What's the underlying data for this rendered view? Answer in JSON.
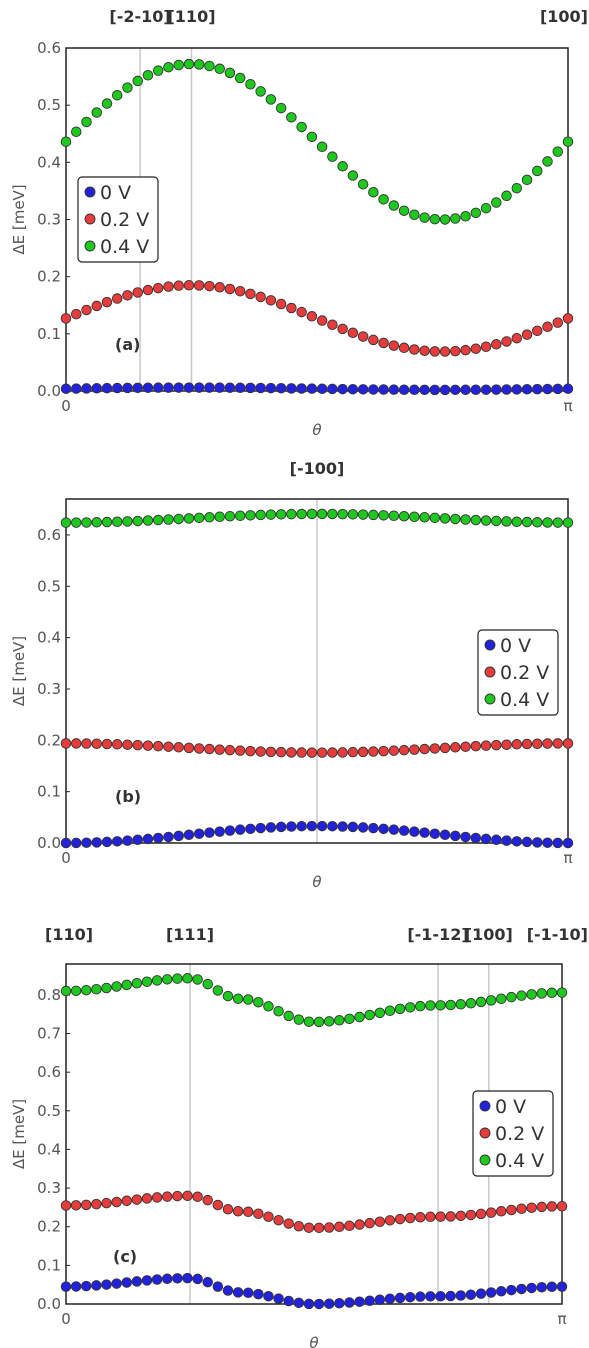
{
  "chart_data": [
    {
      "type": "scatter",
      "panel_label": "(a)",
      "xlabel": "θ",
      "ylabel": "ΔE [meV]",
      "xlim": [
        0,
        3.1416
      ],
      "ylim": [
        0,
        0.6
      ],
      "yticks": [
        "0.0",
        "0.1",
        "0.2",
        "0.3",
        "0.4",
        "0.5",
        "0.6"
      ],
      "xticks": [
        "0",
        "π"
      ],
      "yticks_values": [
        0,
        0.1,
        0.2,
        0.3,
        0.4,
        0.5,
        0.6
      ],
      "xticks_values": [
        0,
        3.1416
      ],
      "legend_position": "center-left",
      "direction_lines": [
        {
          "label": "[-2-10]",
          "x": 0.4636
        },
        {
          "label": "[110]",
          "x": 0.7854
        },
        {
          "label": "[100]",
          "x": 3.1416
        }
      ],
      "series": [
        {
          "name": "0 V",
          "color": "#2222dd",
          "amplitude": 0.002,
          "offset": 0.004,
          "phase": 0.785
        },
        {
          "name": "0.2 V",
          "color": "#e63c3c",
          "amplitude": 0.058,
          "offset": 0.127,
          "phase": 0.785
        },
        {
          "name": "0.4 V",
          "color": "#1ec81e",
          "amplitude": 0.136,
          "offset": 0.436,
          "phase": 0.785
        }
      ]
    },
    {
      "type": "scatter",
      "panel_label": "(b)",
      "xlabel": "θ",
      "ylabel": "ΔE [meV]",
      "xlim": [
        0,
        3.1416
      ],
      "ylim": [
        0,
        0.67
      ],
      "yticks": [
        "0.0",
        "0.1",
        "0.2",
        "0.3",
        "0.4",
        "0.5",
        "0.6"
      ],
      "xticks": [
        "0",
        "π"
      ],
      "yticks_values": [
        0,
        0.1,
        0.2,
        0.3,
        0.4,
        0.5,
        0.6
      ],
      "xticks_values": [
        0,
        3.1416
      ],
      "legend_position": "center-right",
      "direction_lines": [
        {
          "label": "[-100]",
          "x": 1.5708
        }
      ],
      "series": [
        {
          "name": "0 V",
          "color": "#2222dd",
          "amplitude": -0.0165,
          "offset": 0.0165,
          "phase": 0
        },
        {
          "name": "0.2 V",
          "color": "#e63c3c",
          "amplitude": 0.009,
          "offset": 0.185,
          "phase": 0
        },
        {
          "name": "0.4 V",
          "color": "#1ec81e",
          "amplitude": -0.0085,
          "offset": 0.6325,
          "phase": 0
        }
      ]
    },
    {
      "type": "scatter",
      "panel_label": "(c)",
      "xlabel": "θ",
      "ylabel": "ΔE [meV]",
      "xlim": [
        0,
        3.1416
      ],
      "ylim": [
        0,
        0.88
      ],
      "yticks": [
        "0.0",
        "0.1",
        "0.2",
        "0.3",
        "0.4",
        "0.5",
        "0.6",
        "0.7",
        "0.8"
      ],
      "xticks": [
        "0",
        "π"
      ],
      "yticks_values": [
        0,
        0.1,
        0.2,
        0.3,
        0.4,
        0.5,
        0.6,
        0.7,
        0.8
      ],
      "xticks_values": [
        0,
        3.1416
      ],
      "legend_position": "center-right",
      "direction_lines": [
        {
          "label": "[110]",
          "x": 0
        },
        {
          "label": "[111]",
          "x": 0.7854
        },
        {
          "label": "[-1-12]",
          "x": 2.3562
        },
        {
          "label": "[100]",
          "x": 2.6779
        },
        {
          "label": "[-1-10]",
          "x": 3.1416
        }
      ],
      "series": [
        {
          "name": "0 V",
          "color": "#2222dd",
          "x": [
            0,
            0.7854,
            1.1,
            1.5708,
            2.3562,
            3.1416
          ],
          "y": [
            0.045,
            0.067,
            0.03,
            0.0,
            0.02,
            0.045
          ]
        },
        {
          "name": "0.2 V",
          "color": "#e63c3c",
          "x": [
            0,
            0.7854,
            1.1,
            1.5708,
            2.3562,
            3.1416
          ],
          "y": [
            0.255,
            0.28,
            0.24,
            0.197,
            0.226,
            0.253
          ]
        },
        {
          "name": "0.4 V",
          "color": "#1ec81e",
          "x": [
            0,
            0.7854,
            1.1,
            1.5708,
            2.3562,
            3.1416
          ],
          "y": [
            0.81,
            0.843,
            0.79,
            0.73,
            0.773,
            0.806
          ]
        }
      ]
    }
  ]
}
